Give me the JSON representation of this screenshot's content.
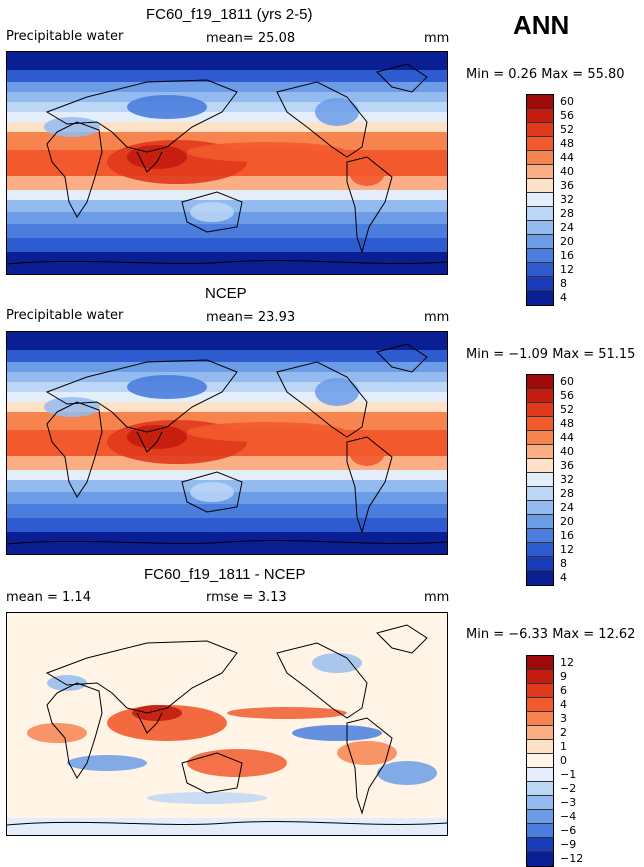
{
  "season": "ANN",
  "units": "mm",
  "chart_data": [
    {
      "type": "heatmap",
      "title": "FC60_f19_1811 (yrs 2-5)",
      "variable": "Precipitable water",
      "mean_text": "mean=  25.08",
      "units": "mm",
      "minmax_text": "Min =   0.26  Max =  55.80",
      "min": 0.26,
      "max": 55.8,
      "colorbar_levels": [
        "60",
        "56",
        "52",
        "48",
        "44",
        "40",
        "36",
        "32",
        "28",
        "24",
        "20",
        "16",
        "12",
        "8",
        "4"
      ],
      "colorbar_colors": [
        "#9e0a0a",
        "#c41c0e",
        "#e0391c",
        "#f25a2e",
        "#f7834f",
        "#fbae84",
        "#fde2c8",
        "#e3eefa",
        "#bcd6f6",
        "#94bbef",
        "#6c9ce6",
        "#4a7ddd",
        "#2f5bd1",
        "#1a3cba",
        "#0b1f94"
      ]
    },
    {
      "type": "heatmap",
      "title": "NCEP",
      "variable": "Precipitable water",
      "mean_text": "mean=  23.93",
      "units": "mm",
      "minmax_text": "Min =  −1.09  Max =  51.15",
      "min": -1.09,
      "max": 51.15,
      "colorbar_levels": [
        "60",
        "56",
        "52",
        "48",
        "44",
        "40",
        "36",
        "32",
        "28",
        "24",
        "20",
        "16",
        "12",
        "8",
        "4"
      ],
      "colorbar_colors": [
        "#9e0a0a",
        "#c41c0e",
        "#e0391c",
        "#f25a2e",
        "#f7834f",
        "#fbae84",
        "#fde2c8",
        "#e3eefa",
        "#bcd6f6",
        "#94bbef",
        "#6c9ce6",
        "#4a7ddd",
        "#2f5bd1",
        "#1a3cba",
        "#0b1f94"
      ]
    },
    {
      "type": "heatmap",
      "title": "FC60_f19_1811 - NCEP",
      "mean_text": "mean =   1.14",
      "rmse_text": "rmse =   3.13",
      "units": "mm",
      "minmax_text": "Min =  −6.33  Max =  12.62",
      "min": -6.33,
      "max": 12.62,
      "colorbar_levels": [
        "12",
        "9",
        "6",
        "4",
        "3",
        "2",
        "1",
        "0",
        "−1",
        "−2",
        "−3",
        "−4",
        "−6",
        "−9",
        "−12"
      ],
      "colorbar_colors": [
        "#9e0a0a",
        "#c41c0e",
        "#e0391c",
        "#f25a2e",
        "#f7834f",
        "#fbae84",
        "#fde2c8",
        "#fff4e6",
        "#e3eefa",
        "#bcd6f6",
        "#94bbef",
        "#6c9ce6",
        "#4a7ddd",
        "#1a3cba",
        "#0b1f94"
      ]
    }
  ]
}
